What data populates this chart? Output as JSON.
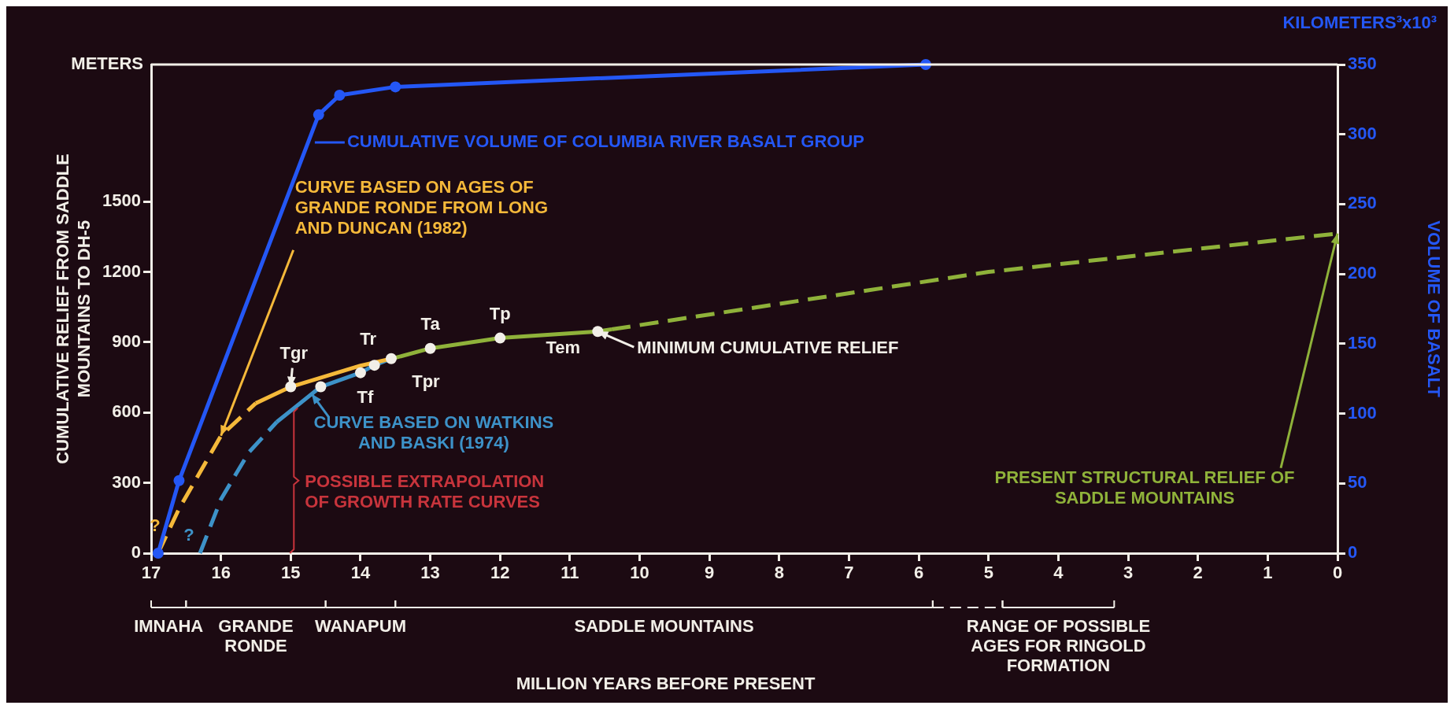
{
  "chart_data": {
    "type": "line",
    "ylabel": "CUMULATIVE RELIEF FROM SADDLE MOUNTAINS TO DH-5",
    "y2label": "VOLUME OF BASALT",
    "xlim": [
      17,
      0
    ],
    "xticks": [
      17,
      16,
      15,
      14,
      13,
      12,
      11,
      10,
      9,
      8,
      7,
      6,
      5,
      4,
      3,
      2,
      1,
      0
    ],
    "ylim": [
      0,
      2085
    ],
    "yticks": [
      0,
      300,
      600,
      900,
      1200,
      1500
    ],
    "y2lim": [
      0,
      350
    ],
    "y2ticks": [
      0,
      50,
      100,
      150,
      200,
      250,
      300,
      350
    ],
    "series": [
      {
        "color": "#2457f5",
        "axis": "y2",
        "marker": "circle",
        "line_style": "solid",
        "x": [
          16.9,
          16.6,
          14.6,
          14.3,
          13.5,
          5.9
        ],
        "values": [
          0,
          52,
          314,
          328,
          334,
          350
        ]
      },
      {
        "color": "#f5b93a",
        "line_style": "dashed",
        "marker": "none",
        "x": [
          16.9,
          16.6,
          16.0,
          15.5
        ],
        "values": [
          0,
          190,
          501,
          640
        ]
      },
      {
        "color": "#f5b93a",
        "line_style": "solid",
        "marker": "none",
        "x": [
          15.5,
          15.0,
          14.5,
          14.0,
          13.5
        ],
        "values": [
          640,
          710,
          755,
          800,
          834
        ]
      },
      {
        "color": "#3d92c8",
        "line_style": "dashed",
        "marker": "none",
        "x": [
          16.3,
          16.0,
          15.6,
          15.2
        ],
        "values": [
          0,
          230,
          430,
          560
        ]
      },
      {
        "color": "#3d92c8",
        "line_style": "solid",
        "marker": "none",
        "x": [
          15.2,
          14.57,
          14.0,
          13.8,
          13.56
        ],
        "values": [
          560,
          710,
          770,
          802,
          830
        ]
      },
      {
        "color": "#8fb23a",
        "line_style": "solid",
        "marker": "none",
        "x": [
          13.5,
          13.0,
          12.0,
          10.6,
          10.4
        ],
        "values": [
          834,
          874,
          918,
          946,
          955
        ]
      },
      {
        "color": "#8fb23a",
        "line_style": "dashed",
        "marker": "none",
        "x": [
          10.4,
          5,
          0
        ],
        "values": [
          955,
          1200,
          1364
        ]
      },
      {
        "type": "scatter",
        "color": "#f2efe8",
        "marker": "circle",
        "x": [
          15.0,
          14.57,
          14.0,
          13.8,
          13.56,
          13.0,
          12.0,
          10.6
        ],
        "values": [
          710,
          710,
          770,
          802,
          830,
          874,
          918,
          946
        ]
      }
    ],
    "annotations": [
      "METERS",
      "KILOMETERS³x10³",
      {
        "text": "CUMULATIVE VOLUME OF COLUMBIA RIVER BASALT GROUP",
        "x": 14.7,
        "y": 1753
      },
      {
        "text": "CURVE BASED ON AGES OF GRANDE RONDE FROM LONG AND DUNCAN (1982)",
        "x": 16.0,
        "y": 501
      },
      {
        "text": "CURVE BASED ON WATKINS AND BASKI (1974)",
        "x": 14.7,
        "y": 680
      },
      "POSSIBLE EXTRAPOLATION OF GROWTH RATE CURVES",
      {
        "text": "MINIMUM CUMULATIVE RELIEF",
        "x": 10.6,
        "y": 946
      },
      {
        "text": "PRESENT STRUCTURAL RELIEF OF SADDLE MOUNTAINS",
        "x": 0,
        "y": 1364
      },
      {
        "text": "Tgr",
        "x": 15.0,
        "y": 710
      },
      {
        "text": "Tf",
        "x": 14.0,
        "y": 770
      },
      {
        "text": "Tr",
        "x": 13.8,
        "y": 802
      },
      {
        "text": "Tpr",
        "x": 13.56,
        "y": 830
      },
      {
        "text": "Ta",
        "x": 13.0,
        "y": 874
      },
      {
        "text": "Tp",
        "x": 12.0,
        "y": 918
      },
      {
        "text": "Tem",
        "x": 10.6,
        "y": 946
      },
      {
        "text": "?",
        "x": 16.9,
        "y": 0
      },
      {
        "text": "?",
        "x": 16.3,
        "y": 0
      },
      "IMNAHA",
      "GRANDE RONDE",
      "WANAPUM",
      "SADDLE MOUNTAINS",
      "RANGE OF POSSIBLE AGES FOR RINGOLD FORMATION",
      "MILLION YEARS BEFORE PRESENT"
    ]
  }
}
